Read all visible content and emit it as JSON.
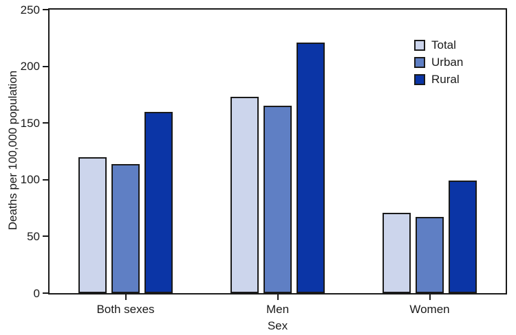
{
  "chart_data": {
    "type": "bar",
    "title": "",
    "xlabel": "Sex",
    "ylabel": "Deaths per 100,000 population",
    "categories": [
      "Both sexes",
      "Men",
      "Women"
    ],
    "series": [
      {
        "name": "Total",
        "color": "#ccd5ec",
        "values": [
          120,
          173,
          71
        ]
      },
      {
        "name": "Urban",
        "color": "#5f7fc4",
        "values": [
          114,
          165,
          67
        ]
      },
      {
        "name": "Rural",
        "color": "#0b35a6",
        "values": [
          160,
          221,
          99
        ]
      }
    ],
    "ylim": [
      0,
      250
    ],
    "y_ticks": [
      0,
      50,
      100,
      150,
      200,
      250
    ],
    "grid": false,
    "legend_position": "top-right",
    "legend_labels": [
      "Total",
      "Urban",
      "Rural"
    ],
    "axis_color": "#1a1a1a",
    "bar_border_color": "#1a1a1a",
    "background_color": "#ffffff"
  }
}
